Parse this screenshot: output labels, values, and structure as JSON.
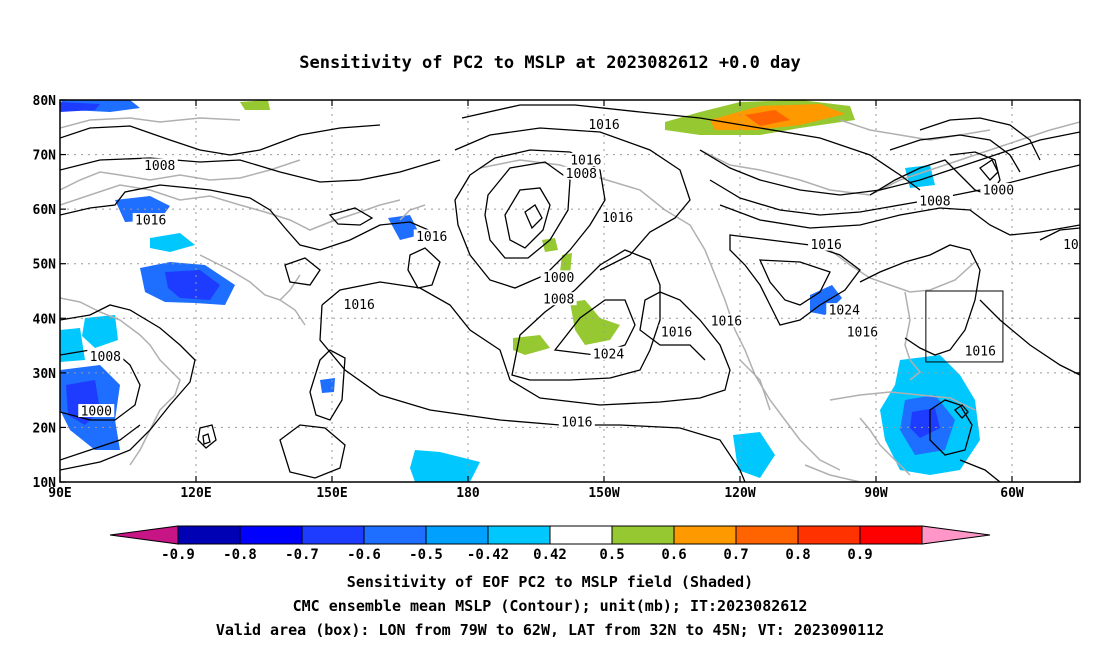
{
  "title": "Sensitivity of PC2 to MSLP at 2023082612 +0.0 day",
  "axes": {
    "lon_ticks": [
      {
        "value": 90,
        "label": "90E"
      },
      {
        "value": 120,
        "label": "120E"
      },
      {
        "value": 150,
        "label": "150E"
      },
      {
        "value": 180,
        "label": "180"
      },
      {
        "value": 210,
        "label": "150W"
      },
      {
        "value": 240,
        "label": "120W"
      },
      {
        "value": 270,
        "label": "90W"
      },
      {
        "value": 300,
        "label": "60W"
      }
    ],
    "lat_ticks": [
      {
        "value": 80,
        "label": "80N"
      },
      {
        "value": 70,
        "label": "70N"
      },
      {
        "value": 60,
        "label": "60N"
      },
      {
        "value": 50,
        "label": "50N"
      },
      {
        "value": 40,
        "label": "40N"
      },
      {
        "value": 30,
        "label": "30N"
      },
      {
        "value": 20,
        "label": "20N"
      },
      {
        "value": 10,
        "label": "10N"
      }
    ],
    "lon_range": [
      90,
      315
    ],
    "lat_range": [
      10,
      80
    ],
    "grid": "dotted"
  },
  "colorbar": {
    "labels": [
      "-0.9",
      "-0.8",
      "-0.7",
      "-0.6",
      "-0.5",
      "-0.42",
      "0.42",
      "0.5",
      "0.6",
      "0.7",
      "0.8",
      "0.9"
    ],
    "colors": [
      "#c71585",
      "#0000b4",
      "#0000ff",
      "#1e3cff",
      "#1e6eff",
      "#00a0ff",
      "#00c8ff",
      "#ffffff",
      "#96c832",
      "#ff9900",
      "#ff6400",
      "#ff3200",
      "#ff0000",
      "#ff96c8"
    ]
  },
  "valid_box": {
    "lon": [
      281,
      298
    ],
    "lat": [
      32,
      45
    ]
  },
  "contour_labels": [
    {
      "text": "1016",
      "lon": 210,
      "lat": 75.5
    },
    {
      "text": "1016",
      "lon": 206,
      "lat": 69
    },
    {
      "text": "1008",
      "lon": 205,
      "lat": 66.5
    },
    {
      "text": "1008",
      "lon": 112,
      "lat": 68
    },
    {
      "text": "1016",
      "lon": 110,
      "lat": 58
    },
    {
      "text": "1016",
      "lon": 172,
      "lat": 55
    },
    {
      "text": "1016",
      "lon": 213,
      "lat": 58.5
    },
    {
      "text": "1016",
      "lon": 259,
      "lat": 53.5
    },
    {
      "text": "1000",
      "lon": 200,
      "lat": 47.5
    },
    {
      "text": "1008",
      "lon": 200,
      "lat": 43.5
    },
    {
      "text": "1016",
      "lon": 156,
      "lat": 42.5
    },
    {
      "text": "1024",
      "lon": 211,
      "lat": 33.5
    },
    {
      "text": "1016",
      "lon": 226,
      "lat": 37.5
    },
    {
      "text": "1016",
      "lon": 237,
      "lat": 39.5
    },
    {
      "text": "1024",
      "lon": 263,
      "lat": 41.5
    },
    {
      "text": "1016",
      "lon": 267,
      "lat": 37.5
    },
    {
      "text": "1008",
      "lon": 283,
      "lat": 61.5
    },
    {
      "text": "1000",
      "lon": 297,
      "lat": 63.5
    },
    {
      "text": "1016",
      "lon": 293,
      "lat": 34
    },
    {
      "text": "10",
      "lon": 313,
      "lat": 53.5
    },
    {
      "text": "1008",
      "lon": 100,
      "lat": 33
    },
    {
      "text": "1000",
      "lon": 98,
      "lat": 23
    },
    {
      "text": "1016",
      "lon": 204,
      "lat": 21
    }
  ],
  "captions": [
    "Sensitivity of EOF PC2 to MSLP field (Shaded)",
    "CMC ensemble mean MSLP (Contour); unit(mb); IT:2023082612",
    "Valid area (box): LON from 79W to 62W, LAT from 32N to 45N; VT: 2023090112"
  ]
}
